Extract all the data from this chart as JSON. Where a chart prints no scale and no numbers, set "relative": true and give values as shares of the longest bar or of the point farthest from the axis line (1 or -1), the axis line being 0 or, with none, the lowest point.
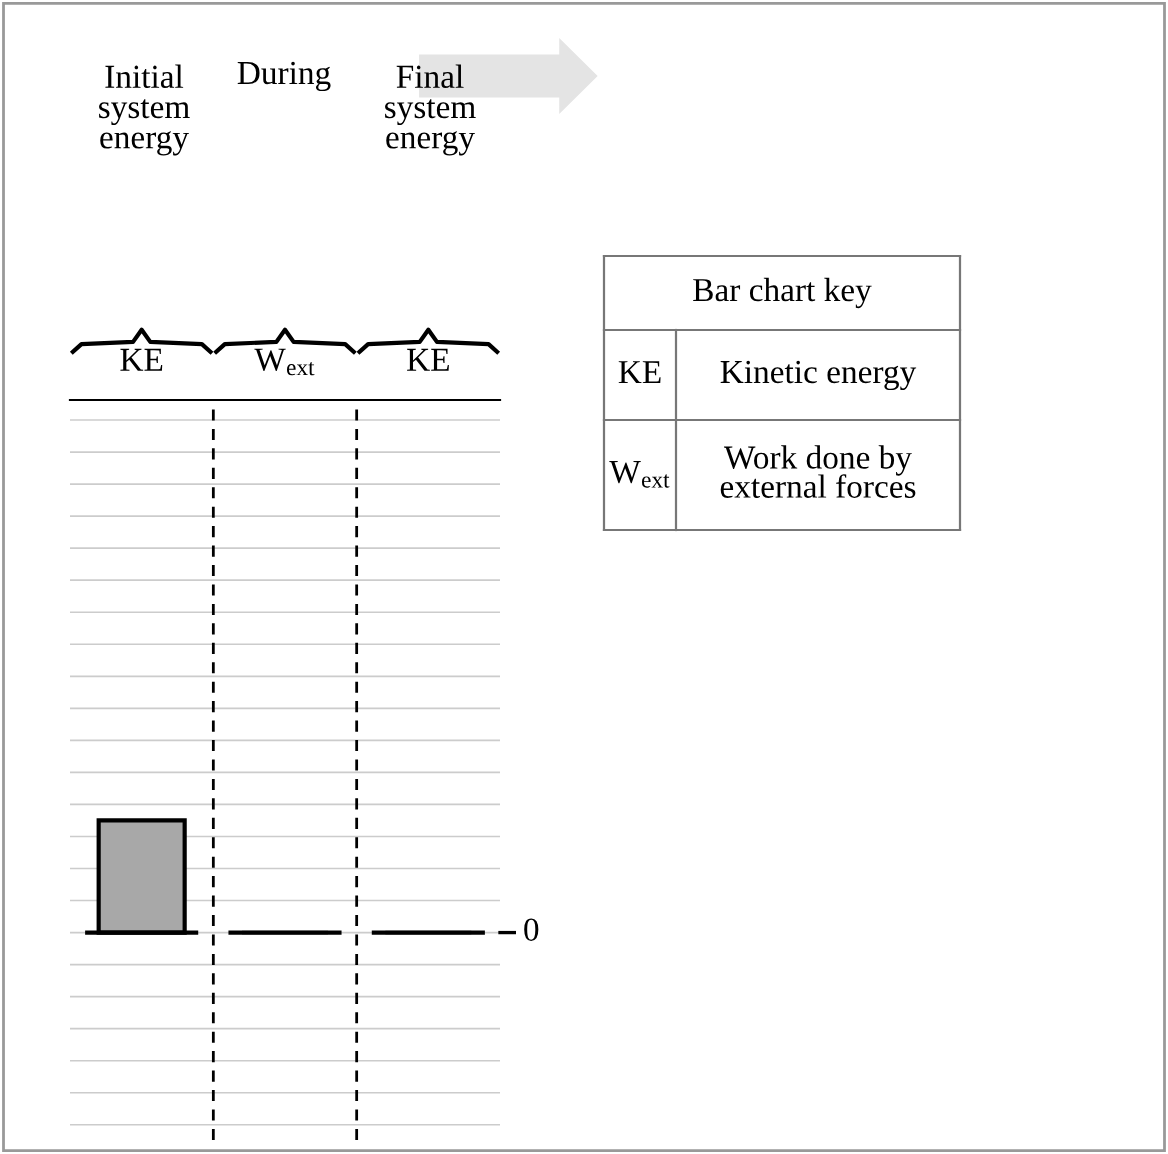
{
  "chart_data": {
    "type": "bar",
    "relative": true,
    "categories": [
      "KE",
      "W$_{ext}$",
      "KE"
    ],
    "values": [
      1,
      0,
      0
    ],
    "color": "#a8a8a8",
    "grid": "y",
    "ref_lines": [
      {
        "axis": "y",
        "value": 0,
        "label": "0"
      }
    ],
    "annotations": [
      "Initial\nsystem\nenergy",
      "During",
      "Final\nsystem\nenergy",
      "Bar chart key",
      "KE",
      "Kinetic energy",
      "W$_{ext}$",
      "Work done by\nexternal forces"
    ]
  }
}
